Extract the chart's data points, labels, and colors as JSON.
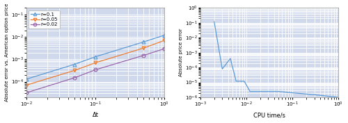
{
  "background_color": "#d0d8eb",
  "fig_background": "#ffffff",
  "left_plot": {
    "xlim": [
      0.01,
      1.0
    ],
    "ylim": [
      2e-05,
      0.2
    ],
    "xlabel": "Δt",
    "ylabel": "Absolute error vs. American option price",
    "series": [
      {
        "label": "r=0.1",
        "color": "#5b9bd5",
        "marker": "^",
        "x": [
          0.01,
          0.05,
          0.1,
          0.5,
          1.0
        ],
        "y": [
          0.00013,
          0.0006,
          0.0013,
          0.006,
          0.012
        ]
      },
      {
        "label": "r=0.05",
        "color": "#ed7d31",
        "marker": "v",
        "x": [
          0.01,
          0.05,
          0.1,
          0.5,
          1.0
        ],
        "y": [
          7e-05,
          0.00032,
          0.0007,
          0.0032,
          0.007
        ]
      },
      {
        "label": "r=0.02",
        "color": "#9966aa",
        "marker": "o",
        "x": [
          0.01,
          0.05,
          0.1,
          0.5,
          1.0
        ],
        "y": [
          3.2e-05,
          0.00015,
          0.00034,
          0.0015,
          0.003
        ]
      }
    ]
  },
  "right_plot": {
    "xlim": [
      0.001,
      1.0
    ],
    "ylim": [
      1e-06,
      1.0
    ],
    "xlabel": "CPU time/s",
    "ylabel": "Absolute price error",
    "color": "#5b9bd5",
    "x": [
      0.002,
      0.003,
      0.0045,
      0.006,
      0.007,
      0.009,
      0.012,
      0.02,
      0.05,
      0.1,
      0.3,
      1.0
    ],
    "y": [
      0.12,
      8e-05,
      0.0004,
      1.2e-05,
      1.2e-05,
      1.2e-05,
      2.5e-06,
      2.5e-06,
      2.5e-06,
      2e-06,
      1.5e-06,
      1e-06
    ]
  }
}
